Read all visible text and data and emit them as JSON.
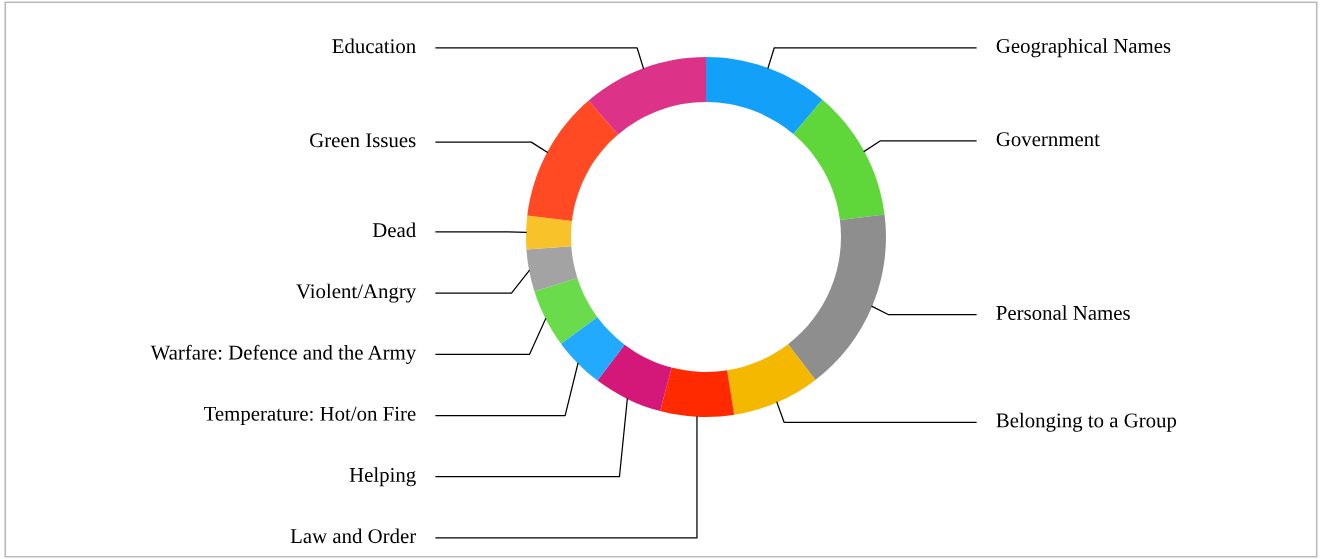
{
  "chart_data": {
    "type": "donut",
    "categories": [
      "Geographical Names",
      "Government",
      "Personal Names",
      "Belonging to a Group",
      "Law and Order",
      "Helping",
      "Temperature: Hot/on Fire",
      "Warfare: Defence and the Army",
      "Violent/Angry",
      "Dead",
      "Green Issues",
      "Education"
    ],
    "values": [
      11.2,
      11.8,
      16.6,
      7.9,
      6.6,
      6.2,
      4.6,
      5.2,
      3.8,
      3.0,
      11.8,
      11.3
    ],
    "colors": [
      "#12a0f8",
      "#5fd63a",
      "#8e8e8e",
      "#f5b800",
      "#ff2a00",
      "#d4187a",
      "#22aaff",
      "#6adb4a",
      "#a3a3a3",
      "#f8c22a",
      "#ff4a24",
      "#dc3388"
    ]
  }
}
